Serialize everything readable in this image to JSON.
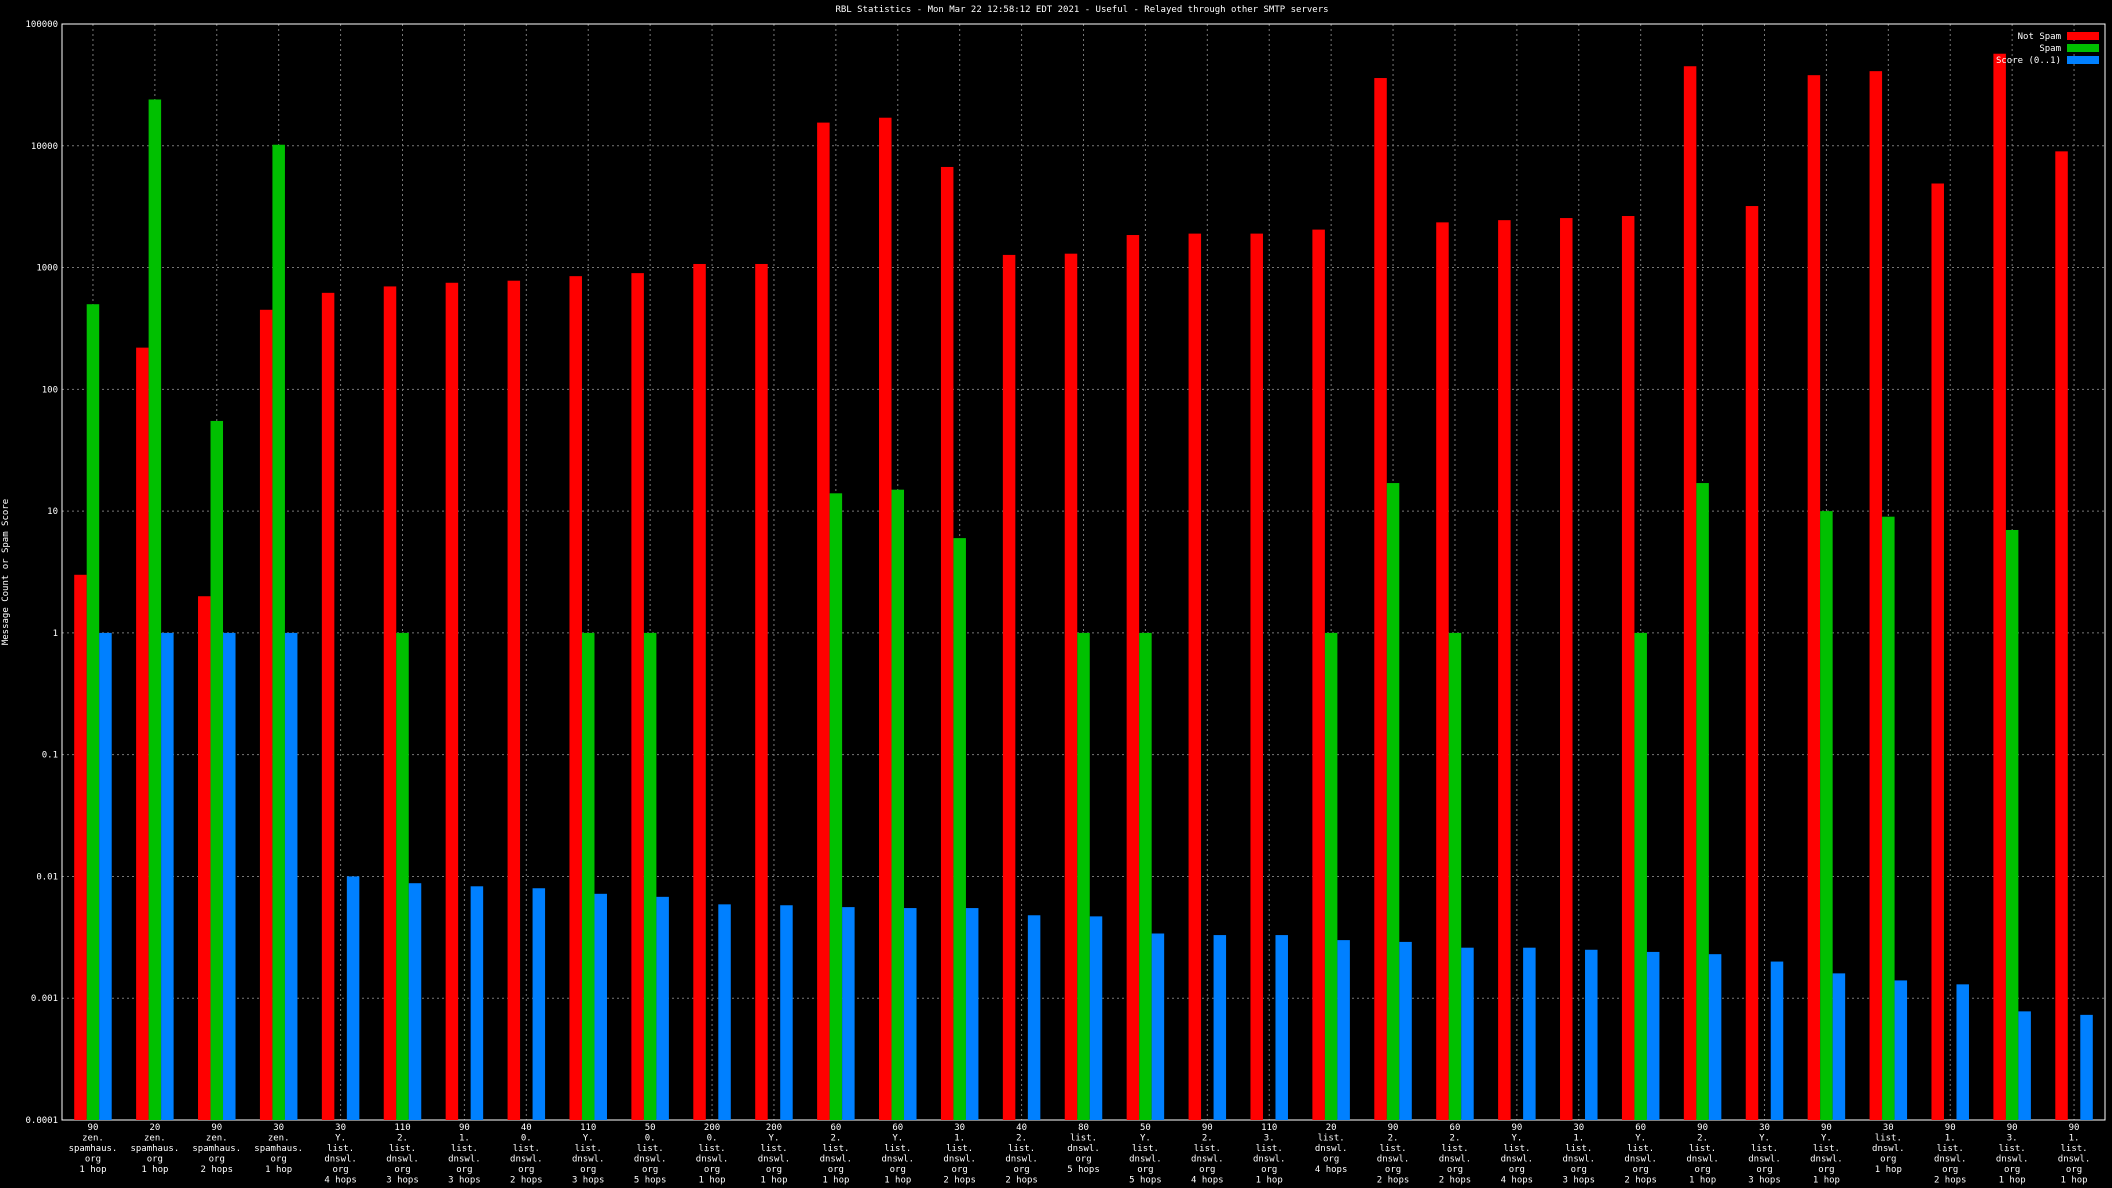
{
  "chart_data": {
    "type": "bar",
    "log_scale": true,
    "grid": true,
    "legend_position": "top-right",
    "title": "RBL Statistics - Mon Mar 22 12:58:12 EDT 2021 - Useful - Relayed through other SMTP servers",
    "y_label": "Message Count or Spam Score",
    "categories": [
      [
        "90",
        "zen.",
        "spamhaus.",
        "org",
        "1 hop"
      ],
      [
        "20",
        "zen.",
        "spamhaus.",
        "org",
        "1 hop"
      ],
      [
        "90",
        "zen.",
        "spamhaus.",
        "org",
        "2 hops"
      ],
      [
        "30",
        "zen.",
        "spamhaus.",
        "org",
        "1 hop"
      ],
      [
        "30",
        "Y.",
        "list.",
        "dnswl.",
        "org",
        "4 hops"
      ],
      [
        "110",
        "2.",
        "list.",
        "dnswl.",
        "org",
        "3 hops"
      ],
      [
        "90",
        "1.",
        "list.",
        "dnswl.",
        "org",
        "3 hops"
      ],
      [
        "40",
        "0.",
        "list.",
        "dnswl.",
        "org",
        "2 hops"
      ],
      [
        "110",
        "Y.",
        "list.",
        "dnswl.",
        "org",
        "3 hops"
      ],
      [
        "50",
        "0.",
        "list.",
        "dnswl.",
        "org",
        "5 hops"
      ],
      [
        "200",
        "0.",
        "list.",
        "dnswl.",
        "org",
        "1 hop"
      ],
      [
        "200",
        "Y.",
        "list.",
        "dnswl.",
        "org",
        "1 hop"
      ],
      [
        "60",
        "2.",
        "list.",
        "dnswl.",
        "org",
        "1 hop"
      ],
      [
        "60",
        "Y.",
        "list.",
        "dnswl.",
        "org",
        "1 hop"
      ],
      [
        "30",
        "1.",
        "list.",
        "dnswl.",
        "org",
        "2 hops"
      ],
      [
        "40",
        "2.",
        "list.",
        "dnswl.",
        "org",
        "2 hops"
      ],
      [
        "80",
        "list.",
        "dnswl.",
        "org",
        "5 hops"
      ],
      [
        "50",
        "Y.",
        "list.",
        "dnswl.",
        "org",
        "5 hops"
      ],
      [
        "90",
        "2.",
        "list.",
        "dnswl.",
        "org",
        "4 hops"
      ],
      [
        "110",
        "3.",
        "list.",
        "dnswl.",
        "org",
        "1 hop"
      ],
      [
        "20",
        "list.",
        "dnswl.",
        "org",
        "4 hops"
      ],
      [
        "90",
        "2.",
        "list.",
        "dnswl.",
        "org",
        "2 hops"
      ],
      [
        "60",
        "2.",
        "list.",
        "dnswl.",
        "org",
        "2 hops"
      ],
      [
        "90",
        "Y.",
        "list.",
        "dnswl.",
        "org",
        "4 hops"
      ],
      [
        "30",
        "1.",
        "list.",
        "dnswl.",
        "org",
        "3 hops"
      ],
      [
        "60",
        "Y.",
        "list.",
        "dnswl.",
        "org",
        "2 hops"
      ],
      [
        "90",
        "2.",
        "list.",
        "dnswl.",
        "org",
        "1 hop"
      ],
      [
        "30",
        "Y.",
        "list.",
        "dnswl.",
        "org",
        "3 hops"
      ],
      [
        "90",
        "Y.",
        "list.",
        "dnswl.",
        "org",
        "1 hop"
      ],
      [
        "30",
        "list.",
        "dnswl.",
        "org",
        "1 hop"
      ],
      [
        "90",
        "1.",
        "list.",
        "dnswl.",
        "org",
        "2 hops"
      ],
      [
        "90",
        "3.",
        "list.",
        "dnswl.",
        "org",
        "1 hop"
      ],
      [
        "90",
        "1.",
        "list.",
        "dnswl.",
        "org",
        "1 hop"
      ]
    ],
    "series": [
      {
        "name": "Not Spam",
        "color": "#ff0000",
        "values": [
          3,
          220,
          2,
          450,
          620,
          700,
          750,
          780,
          850,
          900,
          1070,
          1070,
          15500,
          17000,
          6700,
          1270,
          1300,
          1850,
          1900,
          1900,
          2050,
          36000,
          2350,
          2450,
          2550,
          2650,
          45000,
          3200,
          38000,
          41000,
          4900,
          57000,
          9000
        ]
      },
      {
        "name": "Spam",
        "color": "#00c000",
        "values": [
          500,
          24000,
          55,
          10200,
          null,
          1,
          null,
          null,
          1,
          1,
          null,
          null,
          14,
          15,
          6,
          null,
          1,
          1,
          null,
          null,
          1,
          17,
          1,
          null,
          null,
          1,
          17,
          null,
          10,
          9,
          null,
          7,
          null
        ]
      },
      {
        "name": "Score (0..1)",
        "color": "#0080ff",
        "values": [
          1,
          1,
          1,
          1,
          0.01,
          0.0088,
          0.0083,
          0.008,
          0.0072,
          0.0068,
          0.0059,
          0.0058,
          0.0056,
          0.0055,
          0.0055,
          0.0048,
          0.0047,
          0.0034,
          0.0033,
          0.0033,
          0.003,
          0.0029,
          0.0026,
          0.0026,
          0.0025,
          0.0024,
          0.0023,
          0.002,
          0.0016,
          0.0014,
          0.0013,
          0.00078,
          0.00073
        ]
      }
    ],
    "ylim": [
      0.0001,
      100000
    ],
    "yticks": [
      0.0001,
      0.001,
      0.01,
      0.1,
      1,
      10,
      100,
      1000,
      10000,
      100000
    ]
  }
}
